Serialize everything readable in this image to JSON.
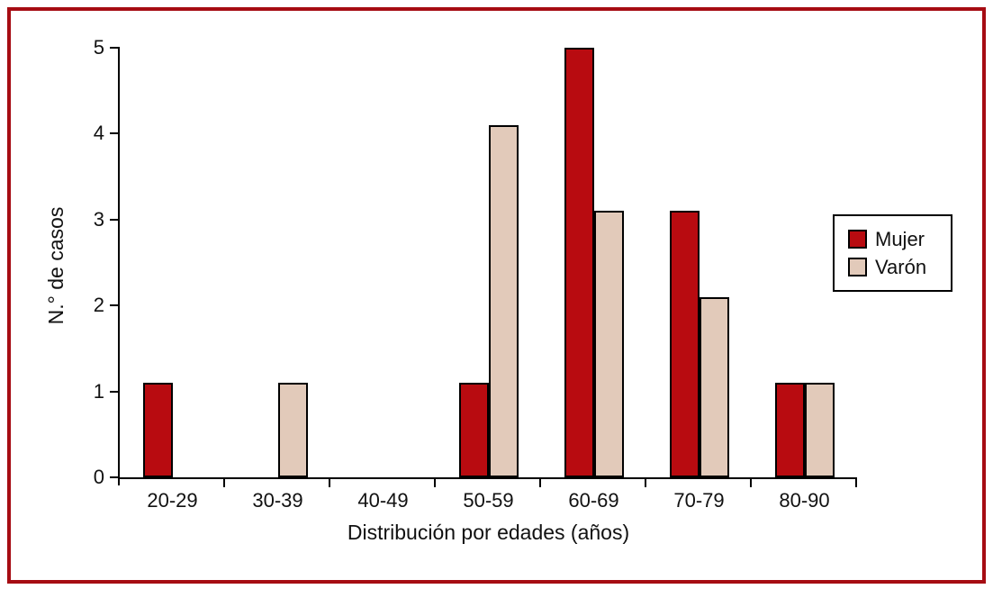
{
  "figure": {
    "background_color": "#ffffff",
    "frame_color": "#a60c13"
  },
  "chart_data": {
    "type": "bar",
    "title": "",
    "xlabel": "Distribución por edades (años)",
    "ylabel": "N.° de casos",
    "categories": [
      "20-29",
      "30-39",
      "40-49",
      "50-59",
      "60-69",
      "70-79",
      "80-90"
    ],
    "series": [
      {
        "name": "Mujer",
        "color": "#b80b10",
        "values": [
          1.1,
          0,
          0,
          1.1,
          5.0,
          3.1,
          1.1
        ]
      },
      {
        "name": "Varón",
        "color": "#e2caba",
        "values": [
          0,
          1.1,
          0,
          4.1,
          3.1,
          2.1,
          1.1
        ]
      }
    ],
    "ylim": [
      0,
      5
    ],
    "yticks": [
      0,
      1,
      2,
      3,
      4,
      5
    ],
    "grid": false,
    "bar_border_color": "#000000",
    "legend_position": "right-inside"
  }
}
